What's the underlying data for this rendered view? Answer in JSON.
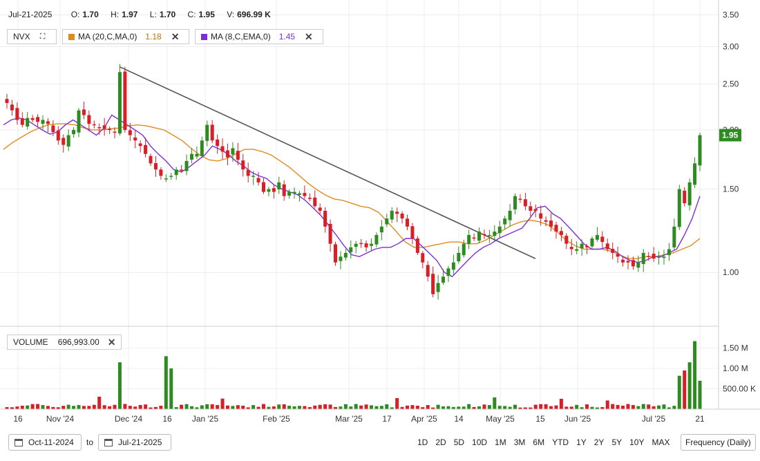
{
  "header": {
    "date": "Jul-21-2025",
    "open_label": "O:",
    "open": "1.70",
    "high_label": "H:",
    "high": "1.97",
    "low_label": "L:",
    "low": "1.70",
    "close_label": "C:",
    "close": "1.95",
    "volume_label": "V:",
    "volume": "696.99 K"
  },
  "legend": {
    "symbol": "NVX",
    "ma20_label": "MA (20,C,MA,0)",
    "ma20_value": "1.18",
    "ma20_color": "#e08a1e",
    "ema8_label": "MA (8,C,EMA,0)",
    "ema8_value": "1.45",
    "ema8_color": "#7b2fd8"
  },
  "volume_panel": {
    "label": "VOLUME",
    "value": "696,993.00"
  },
  "footer": {
    "from_date": "Oct-11-2024",
    "to_label": "to",
    "to_date": "Jul-21-2025",
    "ranges": [
      "1D",
      "2D",
      "5D",
      "10D",
      "1M",
      "3M",
      "6M",
      "YTD",
      "1Y",
      "2Y",
      "5Y",
      "10Y",
      "MAX"
    ],
    "frequency": "Frequency (Daily)"
  },
  "colors": {
    "up": "#2e8b22",
    "down": "#d61f26",
    "price_tag": "#2e8b22",
    "trendline": "#555555"
  },
  "chart_data": {
    "type": "candlestick",
    "scale": "log",
    "price_ticks": [
      "3.50",
      "3.00",
      "2.50",
      "2.00",
      "1.50",
      "1.00"
    ],
    "volume_ticks": [
      "1.50 M",
      "1.00 M",
      "500.00 K"
    ],
    "x_labels": [
      "16",
      "Nov '24",
      "Dec '24",
      "16",
      "Jan '25",
      "Feb '25",
      "Mar '25",
      "17",
      "Apr '25",
      "14",
      "May '25",
      "15",
      "Jun '25",
      "Jul '25",
      "21"
    ],
    "last_price_label": "1.95",
    "close_series": [
      2.28,
      2.2,
      2.1,
      2.05,
      2.12,
      2.1,
      2.08,
      2.1,
      2.06,
      1.98,
      1.9,
      1.86,
      1.95,
      2.0,
      2.2,
      2.15,
      2.06,
      2.05,
      2.02,
      2.01,
      2.0,
      1.98,
      2.65,
      2.0,
      1.95,
      1.9,
      1.85,
      1.78,
      1.7,
      1.65,
      1.6,
      1.58,
      1.6,
      1.65,
      1.64,
      1.72,
      1.78,
      1.78,
      1.9,
      2.05,
      1.9,
      1.85,
      1.8,
      1.75,
      1.83,
      1.73,
      1.65,
      1.6,
      1.6,
      1.55,
      1.48,
      1.5,
      1.48,
      1.55,
      1.45,
      1.48,
      1.48,
      1.47,
      1.45,
      1.43,
      1.38,
      1.35,
      1.25,
      1.15,
      1.05,
      1.08,
      1.1,
      1.13,
      1.15,
      1.15,
      1.13,
      1.15,
      1.2,
      1.25,
      1.3,
      1.35,
      1.33,
      1.3,
      1.25,
      1.18,
      1.1,
      1.05,
      0.98,
      0.9,
      0.95,
      0.98,
      1.02,
      1.05,
      1.1,
      1.15,
      1.2,
      1.18,
      1.22,
      1.2,
      1.2,
      1.22,
      1.25,
      1.3,
      1.35,
      1.45,
      1.43,
      1.38,
      1.35,
      1.35,
      1.3,
      1.28,
      1.25,
      1.22,
      1.2,
      1.15,
      1.12,
      1.12,
      1.15,
      1.13,
      1.18,
      1.2,
      1.16,
      1.12,
      1.1,
      1.08,
      1.05,
      1.05,
      1.03,
      1.05,
      1.1,
      1.08,
      1.07,
      1.08,
      1.08,
      1.12,
      1.25,
      1.5,
      1.4,
      1.55,
      1.7,
      1.95
    ],
    "ma20_series": [
      1.82,
      1.88,
      1.93,
      1.98,
      2.02,
      2.05,
      2.06,
      2.06,
      2.05,
      2.02,
      2.0,
      2.0,
      2.01,
      2.02,
      2.04,
      2.05,
      2.04,
      2.02,
      2.0,
      1.95,
      1.9,
      1.83,
      1.77,
      1.73,
      1.72,
      1.74,
      1.78,
      1.82,
      1.82,
      1.8,
      1.77,
      1.72,
      1.67,
      1.61,
      1.55,
      1.5,
      1.46,
      1.43,
      1.42,
      1.4,
      1.38,
      1.37,
      1.34,
      1.28,
      1.22,
      1.16,
      1.13,
      1.13,
      1.14,
      1.15,
      1.16,
      1.16,
      1.15,
      1.15,
      1.17,
      1.2,
      1.23,
      1.26,
      1.28,
      1.29,
      1.28,
      1.26,
      1.22,
      1.17,
      1.14,
      1.12,
      1.12,
      1.12,
      1.11,
      1.09,
      1.07,
      1.07,
      1.08,
      1.08,
      1.09,
      1.1,
      1.12,
      1.14,
      1.18
    ],
    "ema8_series": [
      2.05,
      2.1,
      2.12,
      2.1,
      2.05,
      2.0,
      1.96,
      1.98,
      2.05,
      2.1,
      2.05,
      2.0,
      1.95,
      2.02,
      2.15,
      2.1,
      2.05,
      2.0,
      1.95,
      1.85,
      1.78,
      1.72,
      1.65,
      1.63,
      1.67,
      1.72,
      1.77,
      1.85,
      1.82,
      1.78,
      1.72,
      1.68,
      1.63,
      1.6,
      1.58,
      1.53,
      1.5,
      1.48,
      1.46,
      1.42,
      1.37,
      1.32,
      1.26,
      1.2,
      1.14,
      1.09,
      1.08,
      1.1,
      1.12,
      1.13,
      1.13,
      1.15,
      1.18,
      1.18,
      1.14,
      1.1,
      1.06,
      1.0,
      0.98,
      1.02,
      1.06,
      1.1,
      1.13,
      1.15,
      1.18,
      1.2,
      1.22,
      1.24,
      1.3,
      1.37,
      1.38,
      1.33,
      1.3,
      1.25,
      1.2,
      1.15,
      1.12,
      1.12,
      1.13,
      1.11,
      1.08,
      1.06,
      1.05,
      1.06,
      1.08,
      1.08,
      1.1,
      1.12,
      1.2,
      1.3,
      1.45
    ]
  }
}
